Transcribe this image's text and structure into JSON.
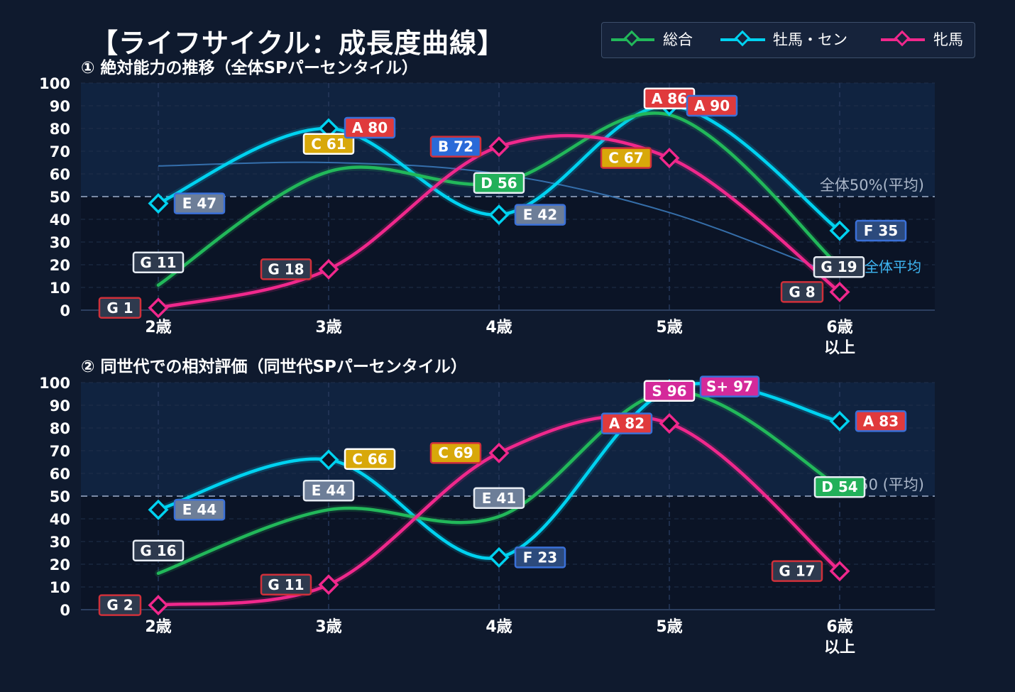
{
  "title": "【ライフサイクル：成長度曲線】",
  "legend": [
    {
      "name": "総合",
      "color": "#22b85a"
    },
    {
      "name": "牡馬・セン",
      "color": "#00d2f0"
    },
    {
      "name": "牝馬",
      "color": "#f0288c"
    }
  ],
  "grade_colors": {
    "S+": "#d42a9a",
    "S": "#d42a9a",
    "A": "#e03a3c",
    "B": "#2a6ad8",
    "C": "#d8a80a",
    "D": "#22b05a",
    "E": "#6d7e98",
    "F": "#2c4a7c",
    "G": "#2e3a4e"
  },
  "label_text_colors": {
    "C": "#ffffff",
    "G": "#ffffff"
  },
  "chart_data": [
    {
      "type": "line",
      "title": "① 絶対能力の推移（全体SPパーセンタイル）",
      "categories": [
        "2歳",
        "3歳",
        "4歳",
        "5歳",
        "6歳\n以上"
      ],
      "ylim": [
        0,
        100
      ],
      "yticks": [
        0,
        10,
        20,
        30,
        40,
        50,
        60,
        70,
        80,
        90,
        100
      ],
      "grid": true,
      "legend_position": "top-right",
      "reference_line": {
        "y": 50,
        "label": "全体50%(平均)"
      },
      "average_curve": {
        "label": "全体平均",
        "values": [
          63.5,
          65,
          60,
          43,
          15
        ]
      },
      "series": [
        {
          "name": "総合",
          "values": [
            11,
            61,
            56,
            86,
            19
          ],
          "labels": [
            "G 11",
            "C 61",
            "D 56",
            "A 86",
            "G 19"
          ]
        },
        {
          "name": "牡馬・セン",
          "values": [
            47,
            80,
            42,
            90,
            35
          ],
          "labels": [
            "E 47",
            "A 80",
            "E 42",
            "A 90",
            "F 35"
          ]
        },
        {
          "name": "牝馬",
          "values": [
            1,
            18,
            72,
            67,
            8
          ],
          "labels": [
            "G 1",
            "G 18",
            "B 72",
            "C 67",
            "G 8"
          ]
        }
      ]
    },
    {
      "type": "line",
      "title": "② 同世代での相対評価（同世代SPパーセンタイル）",
      "categories": [
        "2歳",
        "3歳",
        "4歳",
        "5歳",
        "6歳\n以上"
      ],
      "ylim": [
        0,
        100
      ],
      "yticks": [
        0,
        10,
        20,
        30,
        40,
        50,
        60,
        70,
        80,
        90,
        100
      ],
      "grid": true,
      "reference_line": {
        "y": 50,
        "label": "50 (平均)"
      },
      "series": [
        {
          "name": "総合",
          "values": [
            16,
            44,
            41,
            96,
            54
          ],
          "labels": [
            "G 16",
            "E 44",
            "E 41",
            "S 96",
            "D 54"
          ]
        },
        {
          "name": "牡馬・セン",
          "values": [
            44,
            66,
            23,
            97,
            83
          ],
          "labels": [
            "E 44",
            "C 66",
            "F 23",
            "S+ 97",
            "A 83"
          ]
        },
        {
          "name": "牝馬",
          "values": [
            2,
            11,
            69,
            82,
            17
          ],
          "labels": [
            "G 2",
            "G 11",
            "C 69",
            "A 82",
            "G 17"
          ]
        }
      ]
    }
  ]
}
